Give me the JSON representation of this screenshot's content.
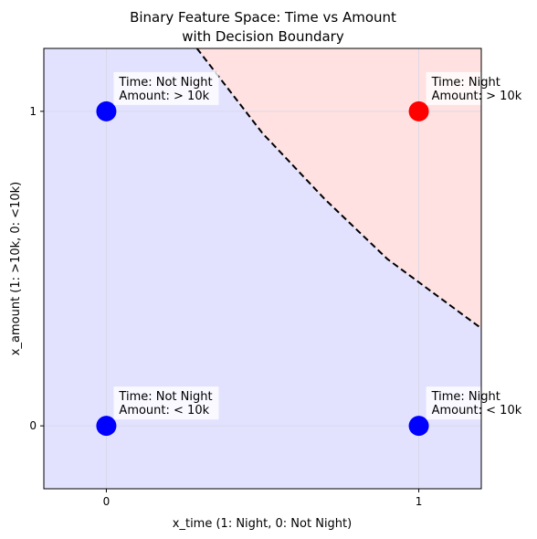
{
  "chart_data": {
    "type": "scatter",
    "title_line1": "Binary Feature Space: Time vs Amount",
    "title_line2": "with Decision Boundary",
    "xlabel": "x_time (1: Night, 0: Not Night)",
    "ylabel": "x_amount (1: >10k, 0: <10k)",
    "xlim": [
      -0.2,
      1.2
    ],
    "ylim": [
      -0.2,
      1.2
    ],
    "xticks": [
      0,
      1
    ],
    "yticks": [
      0,
      1
    ],
    "grid": true,
    "points": [
      {
        "x": 0,
        "y": 1,
        "color": "#0000ff",
        "label_line1": "Time: Not Night",
        "label_line2": "Amount: > 10k"
      },
      {
        "x": 1,
        "y": 1,
        "color": "#ff0000",
        "label_line1": "Time: Night",
        "label_line2": "Amount: > 10k"
      },
      {
        "x": 0,
        "y": 0,
        "color": "#0000ff",
        "label_line1": "Time: Not Night",
        "label_line2": "Amount: < 10k"
      },
      {
        "x": 1,
        "y": 0,
        "color": "#0000ff",
        "label_line1": "Time: Night",
        "label_line2": "Amount: < 10k"
      }
    ],
    "decision_boundary": {
      "style": "dashed",
      "color": "#000000",
      "points": [
        [
          0.29,
          1.2
        ],
        [
          0.5,
          0.93
        ],
        [
          0.7,
          0.72
        ],
        [
          0.9,
          0.53
        ],
        [
          1.2,
          0.31
        ]
      ]
    },
    "regions": {
      "positive_color": "#ffe1e1",
      "negative_color": "#e2e2ff"
    }
  }
}
